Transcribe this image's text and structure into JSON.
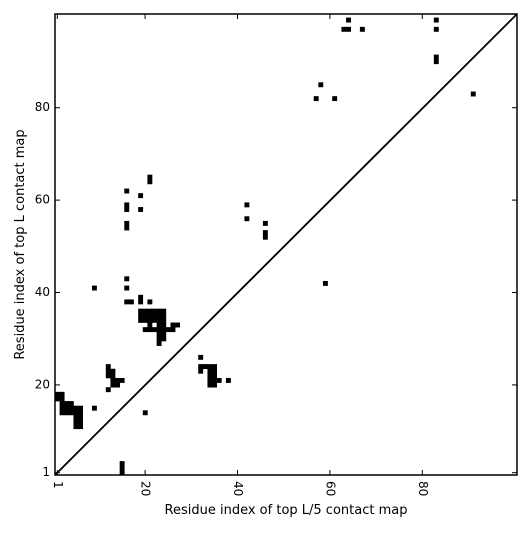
{
  "chart_data": {
    "type": "heatmap",
    "title": "",
    "xlabel": "Residue index of top L/5 contact map",
    "ylabel": "Residue index of top L contact map",
    "xlim": [
      1,
      100
    ],
    "ylim": [
      1,
      100
    ],
    "x_ticks": [
      1,
      20,
      40,
      60,
      80
    ],
    "x_tick_labels": [
      "1",
      "20",
      "40",
      "60",
      "80"
    ],
    "y_ticks": [
      1,
      20,
      40,
      60,
      80
    ],
    "y_tick_labels": [
      "1",
      "20",
      "40",
      "60",
      "80"
    ],
    "diagonal": true,
    "grid": false,
    "cell_color": "#000000",
    "background_color": "#ffffff",
    "contacts": [
      [
        1,
        18
      ],
      [
        2,
        18
      ],
      [
        1,
        17
      ],
      [
        2,
        17
      ],
      [
        2,
        16
      ],
      [
        3,
        16
      ],
      [
        4,
        16
      ],
      [
        2,
        15
      ],
      [
        3,
        15
      ],
      [
        4,
        15
      ],
      [
        5,
        15
      ],
      [
        6,
        15
      ],
      [
        2,
        14
      ],
      [
        3,
        14
      ],
      [
        4,
        14
      ],
      [
        5,
        14
      ],
      [
        6,
        14
      ],
      [
        5,
        13
      ],
      [
        6,
        13
      ],
      [
        5,
        12
      ],
      [
        6,
        12
      ],
      [
        5,
        11
      ],
      [
        6,
        11
      ],
      [
        9,
        15
      ],
      [
        9,
        41
      ],
      [
        12,
        24
      ],
      [
        12,
        23
      ],
      [
        13,
        23
      ],
      [
        12,
        22
      ],
      [
        13,
        22
      ],
      [
        13,
        21
      ],
      [
        14,
        21
      ],
      [
        15,
        21
      ],
      [
        13,
        20
      ],
      [
        14,
        20
      ],
      [
        12,
        19
      ],
      [
        15,
        3
      ],
      [
        15,
        2
      ],
      [
        15,
        1
      ],
      [
        16,
        62
      ],
      [
        16,
        59
      ],
      [
        16,
        58
      ],
      [
        16,
        55
      ],
      [
        16,
        54
      ],
      [
        16,
        43
      ],
      [
        16,
        41
      ],
      [
        16,
        38
      ],
      [
        17,
        38
      ],
      [
        19,
        61
      ],
      [
        19,
        58
      ],
      [
        19,
        39
      ],
      [
        19,
        38
      ],
      [
        20,
        14
      ],
      [
        21,
        65
      ],
      [
        21,
        64
      ],
      [
        21,
        38
      ],
      [
        19,
        36
      ],
      [
        20,
        36
      ],
      [
        21,
        36
      ],
      [
        22,
        36
      ],
      [
        23,
        36
      ],
      [
        24,
        36
      ],
      [
        19,
        35
      ],
      [
        20,
        35
      ],
      [
        21,
        35
      ],
      [
        22,
        35
      ],
      [
        23,
        35
      ],
      [
        24,
        35
      ],
      [
        19,
        34
      ],
      [
        20,
        34
      ],
      [
        21,
        34
      ],
      [
        22,
        34
      ],
      [
        23,
        34
      ],
      [
        24,
        34
      ],
      [
        21,
        33
      ],
      [
        23,
        33
      ],
      [
        24,
        33
      ],
      [
        26,
        33
      ],
      [
        27,
        33
      ],
      [
        20,
        32
      ],
      [
        21,
        32
      ],
      [
        22,
        32
      ],
      [
        23,
        32
      ],
      [
        24,
        32
      ],
      [
        25,
        32
      ],
      [
        26,
        32
      ],
      [
        23,
        31
      ],
      [
        24,
        31
      ],
      [
        23,
        30
      ],
      [
        24,
        30
      ],
      [
        23,
        29
      ],
      [
        32,
        26
      ],
      [
        32,
        24
      ],
      [
        33,
        24
      ],
      [
        34,
        24
      ],
      [
        35,
        24
      ],
      [
        32,
        23
      ],
      [
        34,
        23
      ],
      [
        35,
        23
      ],
      [
        34,
        22
      ],
      [
        35,
        22
      ],
      [
        34,
        21
      ],
      [
        35,
        21
      ],
      [
        36,
        21
      ],
      [
        38,
        21
      ],
      [
        34,
        20
      ],
      [
        35,
        20
      ],
      [
        42,
        59
      ],
      [
        42,
        56
      ],
      [
        46,
        55
      ],
      [
        46,
        53
      ],
      [
        46,
        52
      ],
      [
        57,
        82
      ],
      [
        58,
        85
      ],
      [
        59,
        42
      ],
      [
        61,
        82
      ],
      [
        63,
        97
      ],
      [
        64,
        97
      ],
      [
        64,
        99
      ],
      [
        67,
        97
      ],
      [
        83,
        99
      ],
      [
        83,
        97
      ],
      [
        83,
        91
      ],
      [
        83,
        90
      ],
      [
        91,
        83
      ]
    ]
  }
}
